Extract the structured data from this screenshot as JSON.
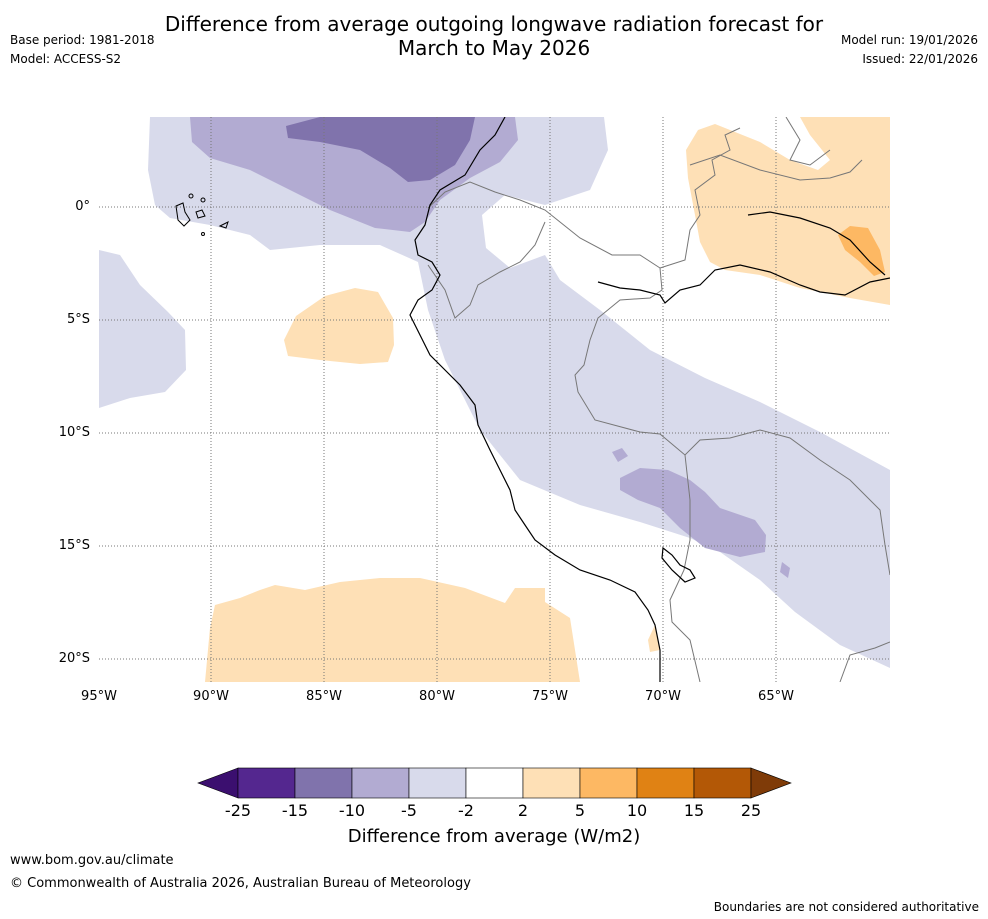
{
  "header": {
    "title_line1": "Difference from average outgoing longwave radiation forecast for",
    "title_line2": "March to May 2026",
    "base_period": "Base period: 1981-2018",
    "model": "Model: ACCESS-S2",
    "model_run": "Model run: 19/01/2026",
    "issued": "Issued: 22/01/2026"
  },
  "map": {
    "lat_labels": [
      "0°",
      "5°S",
      "10°S",
      "15°S",
      "20°S"
    ],
    "lon_labels": [
      "95°W",
      "90°W",
      "85°W",
      "80°W",
      "75°W",
      "70°W",
      "65°W"
    ]
  },
  "colorbar": {
    "ticks": [
      "-25",
      "-15",
      "-10",
      "-5",
      "-2",
      "2",
      "5",
      "10",
      "15",
      "25"
    ],
    "colors": [
      "#3b0f6f",
      "#54278f",
      "#8073ac",
      "#b2abd2",
      "#d8daeb",
      "#ffffff",
      "#fee0b6",
      "#fdb863",
      "#e08214",
      "#b35806",
      "#7f3b08"
    ],
    "label": "Difference from average (W/m2)"
  },
  "footer": {
    "website": "www.bom.gov.au/climate",
    "copyright": "© Commonwealth of Australia 2026, Australian Bureau of Meteorology",
    "disclaimer": "Boundaries are not considered authoritative"
  }
}
